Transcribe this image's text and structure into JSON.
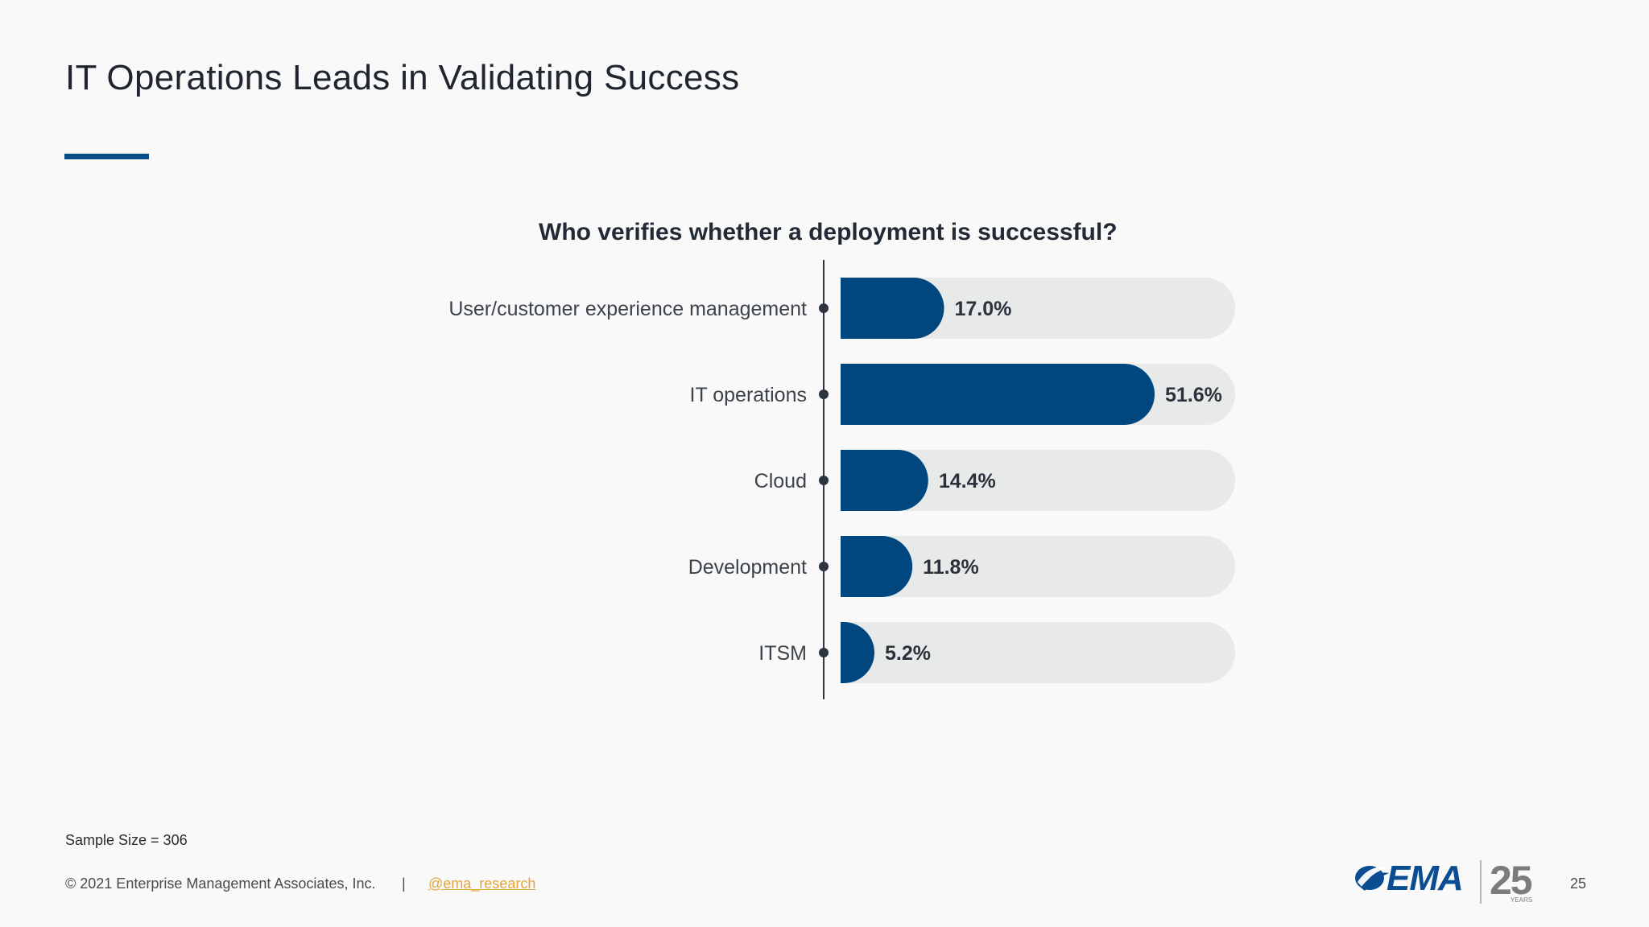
{
  "slide": {
    "title": "IT Operations Leads in Validating Success",
    "sample_size": "Sample Size = 306",
    "copyright": "© 2021 Enterprise Management Associates, Inc.",
    "divider": "|",
    "social_handle": "@ema_research",
    "page_number": "25",
    "accent_color": "#064a86",
    "logo": {
      "brand": "EMA",
      "anniversary": "25",
      "years_text": "YEARS"
    }
  },
  "chart_data": {
    "type": "bar",
    "title": "Who verifies whether a deployment is successful?",
    "orientation": "horizontal",
    "categories": [
      "User/customer experience management",
      "IT operations",
      "Cloud",
      "Development",
      "ITSM"
    ],
    "values": [
      17.0,
      51.6,
      14.4,
      11.8,
      5.2
    ],
    "value_labels": [
      "17.0%",
      "51.6%",
      "14.4%",
      "11.8%",
      "5.2%"
    ],
    "xlim": [
      0,
      100
    ],
    "unit": "%",
    "grid": false,
    "legend": "none",
    "bar_color": "#00467f",
    "track_color": "#e8eaea"
  }
}
